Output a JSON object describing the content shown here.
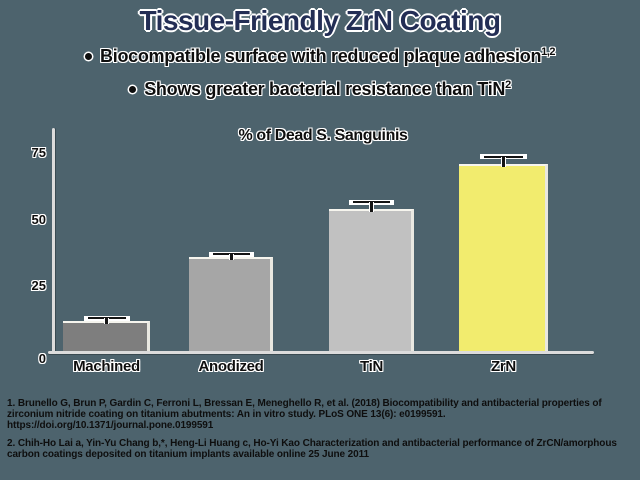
{
  "colors": {
    "background": "#4d636d",
    "title_navy": "#232e55",
    "text_black": "#0e0e0e",
    "axis_line": "#dcdcdc",
    "halo_white": "#ffffff"
  },
  "header": {
    "title": "Tissue-Friendly ZrN Coating",
    "bullets": [
      {
        "text": "Biocompatible surface with reduced plaque adhesion",
        "sup": "1,2"
      },
      {
        "text": "Shows greater bacterial resistance than TiN",
        "sup": "2"
      }
    ]
  },
  "chart_data": {
    "type": "bar",
    "title": "% of Dead S. Sanguinis",
    "categories": [
      "Machined",
      "Anodized",
      "TiN",
      "ZrN"
    ],
    "values": [
      12,
      36,
      54,
      71
    ],
    "errors": [
      1.5,
      1.5,
      3,
      3
    ],
    "bar_colors": [
      "#7e7e7e",
      "#a6a6a6",
      "#c1c1c1",
      "#f2ec6e"
    ],
    "highlight_category": "ZrN",
    "xlabel": "",
    "ylabel": "",
    "ylim": [
      0,
      80
    ],
    "yticks": [
      0,
      25,
      50,
      75
    ],
    "grid": false,
    "legend": false
  },
  "footnotes": [
    "1. Brunello G, Brun P, Gardin C, Ferroni L, Bressan E, Meneghello R, et al. (2018) Biocompatibility and antibacterial properties of zirconium nitride coating on titanium abutments: An in vitro study. PLoS ONE 13(6): e0199591. https://doi.org/10.1371/journal.pone.0199591",
    "2. Chih-Ho Lai a, Yin-Yu Chang b,*, Heng-Li Huang c, Ho-Yi Kao Characterization and antibacterial performance of ZrCN/amorphous carbon coatings deposited on titanium implants available online 25 June 2011"
  ]
}
